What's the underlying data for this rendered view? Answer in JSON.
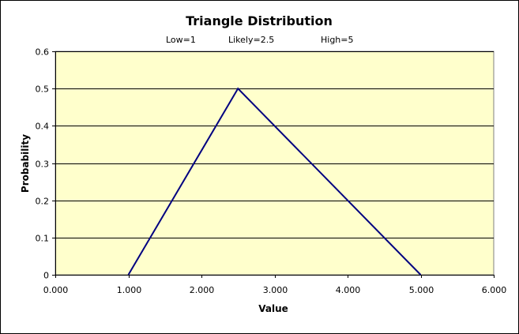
{
  "chart_data": {
    "type": "line",
    "title": "Triangle Distribution",
    "subtitle": [
      "Low=1",
      "Likely=2.5",
      "High=5"
    ],
    "xlabel": "Value",
    "ylabel": "Probability",
    "xlim": [
      0,
      6
    ],
    "ylim": [
      0,
      0.6
    ],
    "x_ticks": [
      "0.000",
      "1.000",
      "2.000",
      "3.000",
      "4.000",
      "5.000",
      "6.000"
    ],
    "y_ticks": [
      "0",
      "0.1",
      "0.2",
      "0.3",
      "0.4",
      "0.5",
      "0.6"
    ],
    "grid": "horizontal",
    "legend": "none",
    "series": [
      {
        "x": [
          1,
          2.5,
          5
        ],
        "y": [
          0,
          0.5,
          0
        ]
      }
    ],
    "colors": {
      "plot_background": "#FFFFCC",
      "line": "#000080",
      "grid": "#000000",
      "axis": "#808080"
    }
  }
}
